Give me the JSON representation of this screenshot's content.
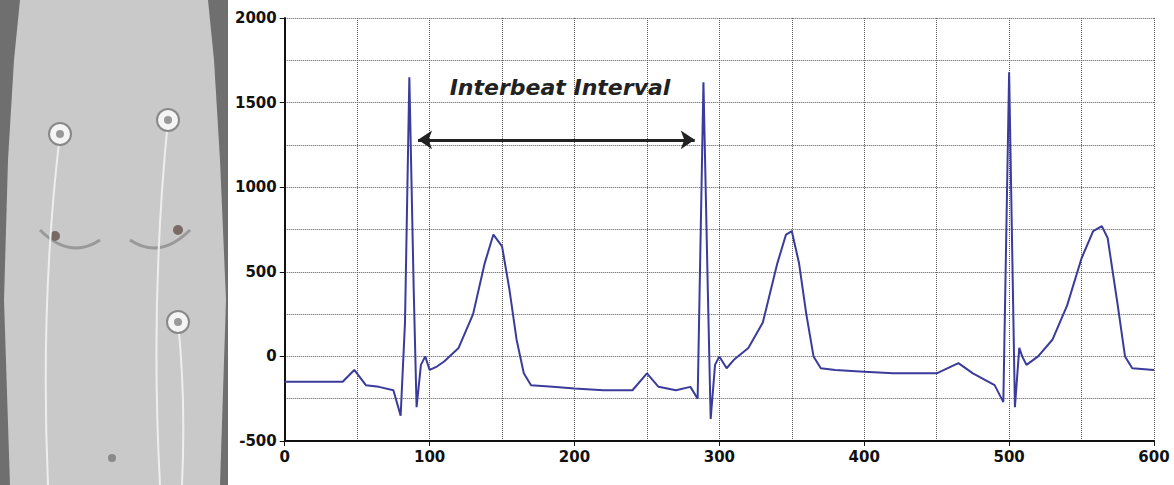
{
  "chart_data": {
    "type": "line",
    "x": [
      0,
      20,
      40,
      48,
      56,
      65,
      75,
      80,
      83,
      86,
      89,
      91,
      94,
      97,
      100,
      105,
      110,
      120,
      130,
      138,
      144,
      150,
      155,
      160,
      165,
      170,
      185,
      200,
      220,
      240,
      250,
      258,
      270,
      280,
      285,
      289,
      292,
      294,
      297,
      300,
      305,
      310,
      320,
      330,
      340,
      346,
      350,
      355,
      360,
      365,
      370,
      380,
      400,
      420,
      450,
      465,
      475,
      490,
      496,
      500,
      504,
      507,
      509,
      512,
      520,
      530,
      540,
      550,
      558,
      564,
      568,
      575,
      580,
      585,
      600
    ],
    "values": [
      -150,
      -150,
      -150,
      -80,
      -170,
      -180,
      -200,
      -350,
      200,
      1650,
      400,
      -300,
      -50,
      0,
      -80,
      -60,
      -30,
      50,
      250,
      550,
      720,
      650,
      400,
      100,
      -100,
      -170,
      -180,
      -190,
      -200,
      -200,
      -100,
      -180,
      -200,
      -180,
      -250,
      1620,
      400,
      -370,
      -50,
      0,
      -70,
      -20,
      50,
      200,
      550,
      720,
      740,
      550,
      250,
      0,
      -70,
      -80,
      -90,
      -100,
      -100,
      -40,
      -100,
      -170,
      -270,
      1680,
      -300,
      50,
      0,
      -50,
      0,
      100,
      300,
      580,
      740,
      770,
      700,
      300,
      0,
      -70,
      -80
    ],
    "color": "#3b3b9c",
    "xlim": [
      0,
      600
    ],
    "xticks": [
      0,
      100,
      200,
      300,
      400,
      500,
      600
    ],
    "ylim": [
      -500,
      2000
    ],
    "yticks": [
      -500,
      0,
      500,
      1000,
      1500,
      2000
    ],
    "grid": true,
    "annotations": [
      {
        "text": "Interbeat Interval",
        "x": 190,
        "y": 1590,
        "arrow_from": [
          92,
          1280
        ],
        "arrow_to": [
          283,
          1280
        ]
      }
    ]
  }
}
